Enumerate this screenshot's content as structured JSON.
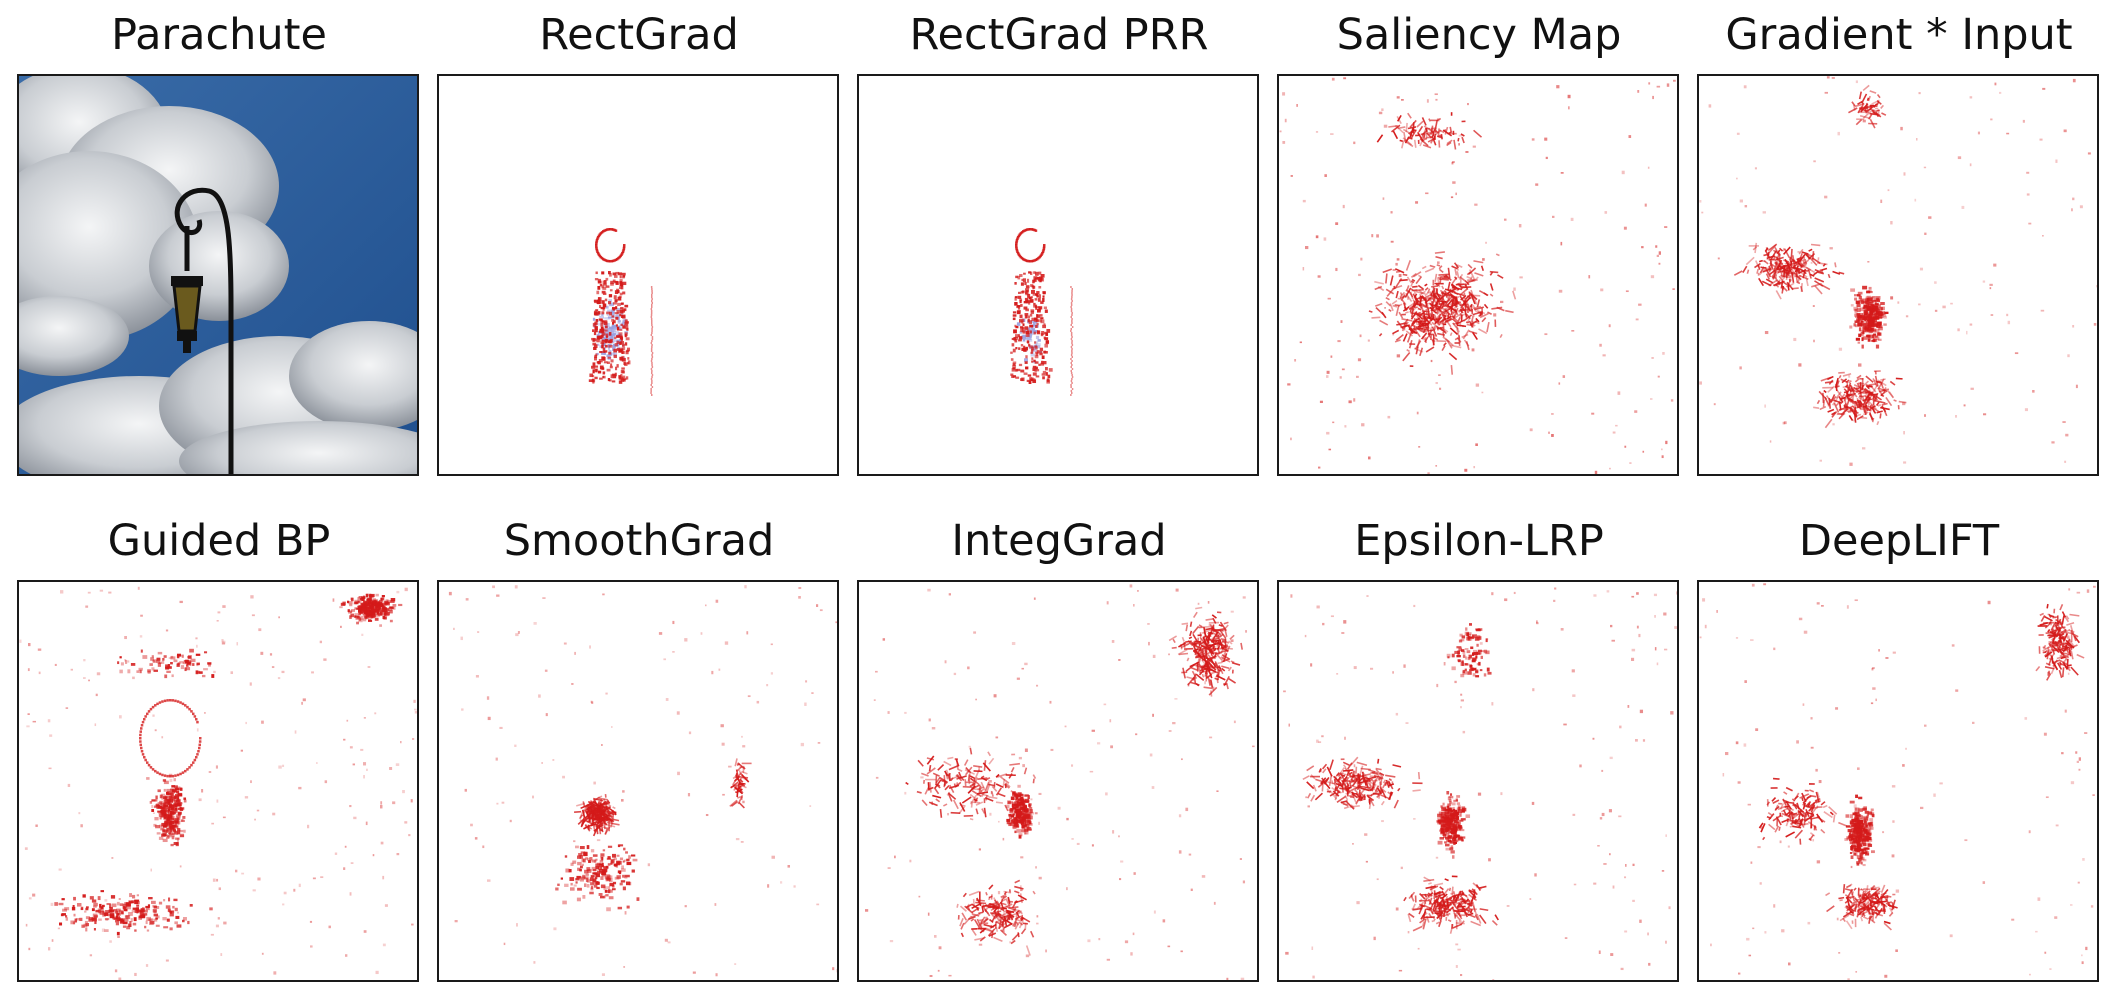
{
  "figure": {
    "panels": [
      {
        "title": "Parachute",
        "kind": "photo"
      },
      {
        "title": "RectGrad",
        "kind": "map"
      },
      {
        "title": "RectGrad PRR",
        "kind": "map"
      },
      {
        "title": "Saliency Map",
        "kind": "map"
      },
      {
        "title": "Gradient * Input",
        "kind": "map"
      },
      {
        "title": "Guided BP",
        "kind": "map"
      },
      {
        "title": "SmoothGrad",
        "kind": "map"
      },
      {
        "title": "IntegGrad",
        "kind": "map"
      },
      {
        "title": "Epsilon-LRP",
        "kind": "map"
      },
      {
        "title": "DeepLIFT",
        "kind": "map"
      }
    ]
  },
  "colors": {
    "attribution_red": "#d41a1a",
    "attribution_blue": "#9aa0e0",
    "sky_blue": "#2f5f9e",
    "cloud_white": "#e9ecef",
    "lamp_black": "#111111",
    "lamp_glass": "#6a5a1e"
  }
}
